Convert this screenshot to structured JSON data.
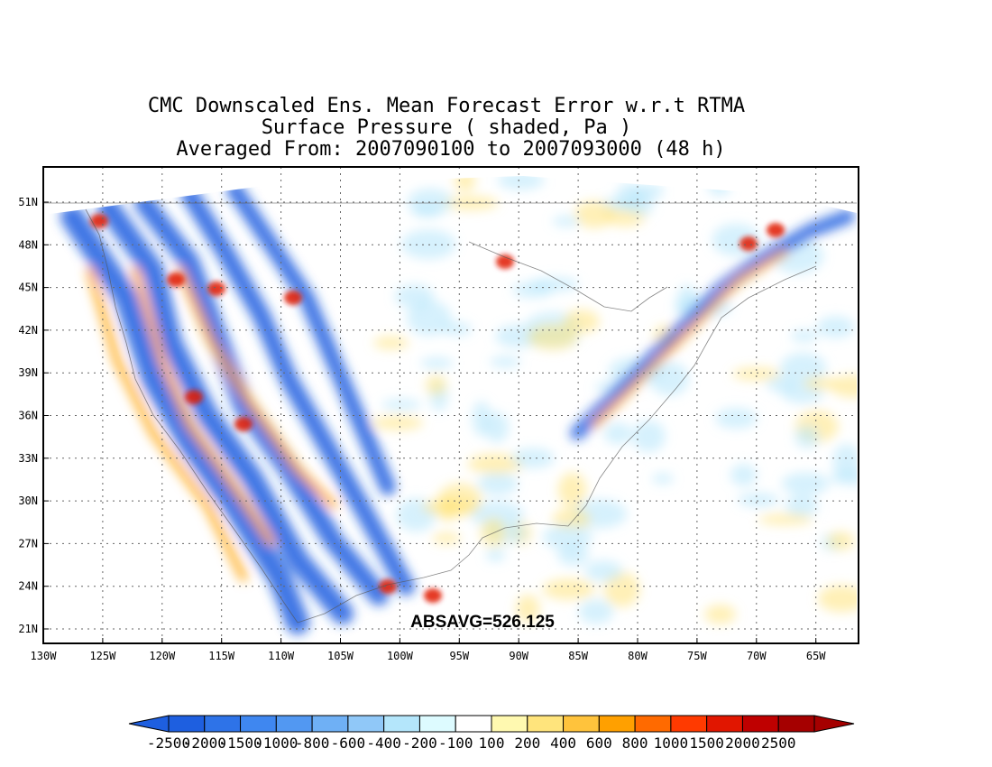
{
  "title": {
    "line1": "CMC Downscaled Ens. Mean Forecast Error w.r.t RTMA",
    "line2": "Surface Pressure ( shaded, Pa )",
    "line3": "Averaged From: 2007090100 to 2007093000 (48 h)"
  },
  "annotation": "ABSAVG=526.125",
  "map": {
    "lat_ticks": [
      "21N",
      "24N",
      "27N",
      "30N",
      "33N",
      "36N",
      "39N",
      "42N",
      "45N",
      "48N",
      "51N"
    ],
    "lon_ticks": [
      "130W",
      "125W",
      "120W",
      "115W",
      "110W",
      "105W",
      "100W",
      "95W",
      "90W",
      "85W",
      "80W",
      "75W",
      "70W",
      "65W"
    ],
    "gridlines": "dotted"
  },
  "colorbar": {
    "labels": [
      "-2500",
      "-2000",
      "-1500",
      "-1000",
      "-800",
      "-600",
      "-400",
      "-200",
      "-100",
      "100",
      "200",
      "400",
      "600",
      "800",
      "1000",
      "1500",
      "2000",
      "2500"
    ],
    "colors": [
      "#1e5fe0",
      "#2e73e8",
      "#3f87f0",
      "#5298f2",
      "#6fb0f5",
      "#90c8f8",
      "#b4e6fb",
      "#ddfbff",
      "#ffffff",
      "#fff9b0",
      "#ffe47c",
      "#ffc33c",
      "#ffa000",
      "#ff6a00",
      "#ff3a00",
      "#e11600",
      "#bf0000",
      "#a50000"
    ]
  },
  "palette": {
    "blue": "#1e5fe0",
    "lightblue": "#b4e6fb",
    "yellow": "#ffe47c",
    "orange": "#ffa000",
    "red": "#e11600"
  }
}
